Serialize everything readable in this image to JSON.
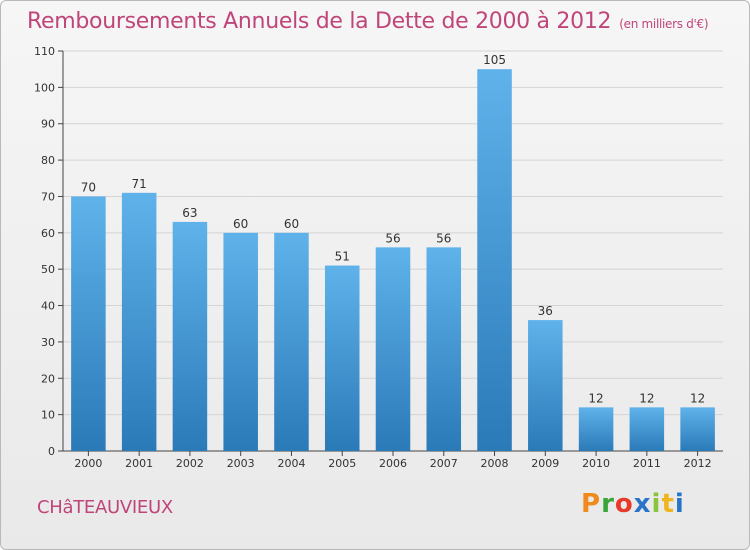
{
  "header": {
    "title": "Remboursements Annuels de la Dette de 2000 à 2012",
    "subtitle": "(en milliers d'€)"
  },
  "footer": {
    "commune": "CHâTEAUVIEUX",
    "brand": "Proxiti"
  },
  "colors": {
    "title": "#c0457a",
    "bar_light": "#5aace6",
    "bar_dark": "#2a7ab8",
    "grid": "#d4d4d4",
    "logo": [
      "#f08a1c",
      "#3aa63a",
      "#e83a2a",
      "#2a74c8",
      "#8ac43a",
      "#f0b41c",
      "#2a74c8"
    ]
  },
  "chart_data": {
    "type": "bar",
    "title": "Remboursements Annuels de la Dette de 2000 à 2012",
    "subtitle": "(en milliers d'€)",
    "categories": [
      "2000",
      "2001",
      "2002",
      "2003",
      "2004",
      "2005",
      "2006",
      "2007",
      "2008",
      "2009",
      "2010",
      "2011",
      "2012"
    ],
    "values": [
      70,
      71,
      63,
      60,
      60,
      51,
      56,
      56,
      105,
      36,
      12,
      12,
      12
    ],
    "ylim": [
      0,
      110
    ],
    "yticks": [
      0,
      10,
      20,
      30,
      40,
      50,
      60,
      70,
      80,
      90,
      100,
      110
    ],
    "xlabel": "",
    "ylabel": "",
    "grid": true,
    "data_labels": true
  }
}
